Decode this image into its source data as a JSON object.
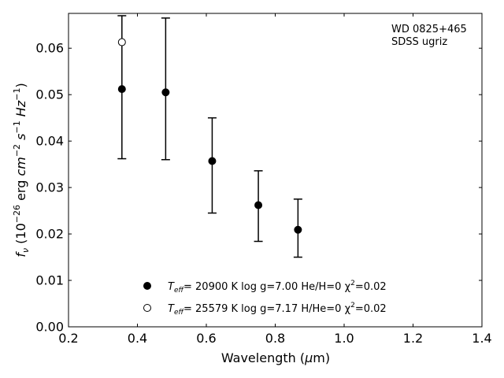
{
  "chart_data": {
    "type": "scatter",
    "annotation": [
      "WD 0825+465",
      "SDSS ugriz"
    ],
    "xlabel": "Wavelength (μm)",
    "ylabel": "f_ν (10^−26 erg cm^−2 s^−1 Hz^−1)",
    "xlim": [
      0.2,
      1.4
    ],
    "ylim": [
      0.0,
      0.0675
    ],
    "xticks": [
      0.2,
      0.4,
      0.6,
      0.8,
      1.0,
      1.2,
      1.4
    ],
    "xtick_labels": [
      "0.2",
      "0.4",
      "0.6",
      "0.8",
      "1.0",
      "1.2",
      "1.4"
    ],
    "yticks": [
      0.0,
      0.01,
      0.02,
      0.03,
      0.04,
      0.05,
      0.06
    ],
    "ytick_labels": [
      "0.00",
      "0.01",
      "0.02",
      "0.03",
      "0.04",
      "0.05",
      "0.06"
    ],
    "grid": false,
    "legend_position": "bottom-center",
    "observed": {
      "points": [
        {
          "x": 0.355,
          "y": 0.0512,
          "yerr_low": 0.0362,
          "yerr_high": 0.067
        },
        {
          "x": 0.482,
          "y": 0.0505,
          "yerr_low": 0.036,
          "yerr_high": 0.0665
        },
        {
          "x": 0.617,
          "y": 0.0357,
          "yerr_low": 0.0245,
          "yerr_high": 0.045
        },
        {
          "x": 0.751,
          "y": 0.0262,
          "yerr_low": 0.0184,
          "yerr_high": 0.0336
        },
        {
          "x": 0.866,
          "y": 0.0209,
          "yerr_low": 0.015,
          "yerr_high": 0.0275
        }
      ]
    },
    "series": [
      {
        "marker": "filled",
        "legend_parts": [
          "T",
          "eff",
          "= 20900 K  log g=7.00  He/H=0  χ",
          "2",
          "=0.02"
        ],
        "points": [
          {
            "x": 0.355,
            "y": 0.0512
          },
          {
            "x": 0.482,
            "y": 0.0505
          },
          {
            "x": 0.617,
            "y": 0.0357
          },
          {
            "x": 0.751,
            "y": 0.0262
          },
          {
            "x": 0.866,
            "y": 0.0209
          }
        ]
      },
      {
        "marker": "open",
        "legend_parts": [
          "T",
          "eff",
          "= 25579 K  log g=7.17  H/He=0  χ",
          "2",
          "=0.02"
        ],
        "points": [
          {
            "x": 0.355,
            "y": 0.0613
          }
        ]
      }
    ]
  }
}
